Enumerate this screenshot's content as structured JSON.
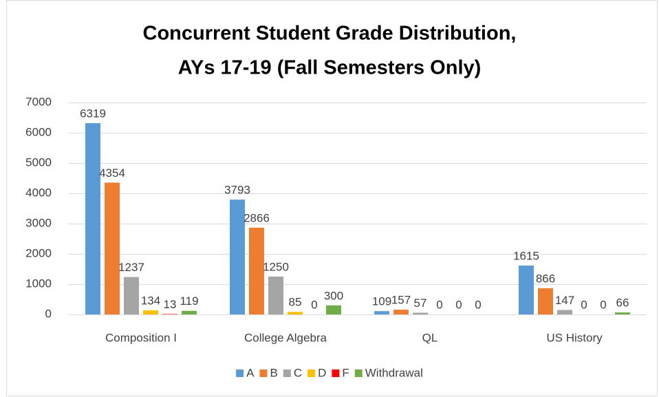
{
  "chart_data": {
    "type": "bar",
    "title": [
      "Concurrent Student Grade Distribution,",
      "AYs 17-19 (Fall Semesters Only)"
    ],
    "categories": [
      "Composition I",
      "College Algebra",
      "QL",
      "US History"
    ],
    "series": [
      {
        "name": "A",
        "color": "#5b9bd5",
        "values": [
          6319,
          3793,
          109,
          1615
        ]
      },
      {
        "name": "B",
        "color": "#ed7d31",
        "values": [
          4354,
          2866,
          157,
          866
        ]
      },
      {
        "name": "C",
        "color": "#a5a5a5",
        "values": [
          1237,
          1250,
          57,
          147
        ]
      },
      {
        "name": "D",
        "color": "#ffc000",
        "values": [
          134,
          85,
          0,
          0
        ]
      },
      {
        "name": "F",
        "color": "#ff0000",
        "values": [
          13,
          0,
          0,
          0
        ]
      },
      {
        "name": "Withdrawal",
        "color": "#70ad47",
        "values": [
          119,
          300,
          0,
          66
        ]
      }
    ],
    "ylim": [
      0,
      7000
    ],
    "yticks": [
      0,
      1000,
      2000,
      3000,
      4000,
      5000,
      6000,
      7000
    ],
    "grid": true,
    "legend": "bottom"
  }
}
